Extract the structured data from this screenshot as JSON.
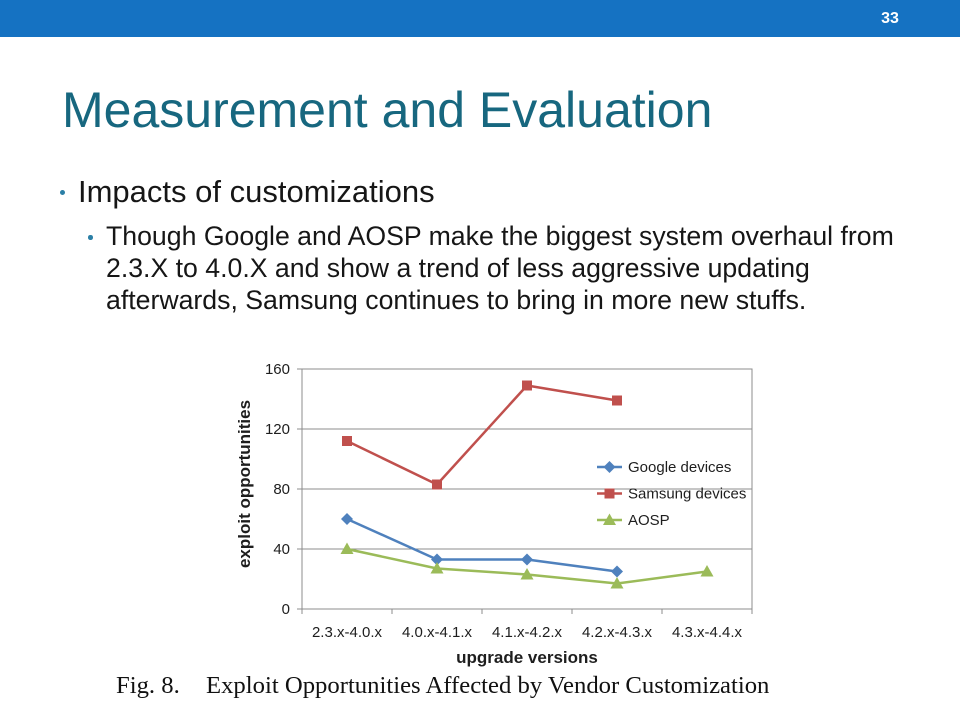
{
  "theme": {
    "header_bar": "#1572c2",
    "title": "#17677f",
    "bullet": "#2b7fa6",
    "text": "#161616"
  },
  "slide": {
    "page_number": "33",
    "title": "Measurement and Evaluation",
    "bullets": [
      {
        "text": "Impacts of customizations",
        "sub_bullets": [
          {
            "text": "Though Google and AOSP make the biggest system overhaul from 2.3.X to 4.0.X and show a trend of less aggressive updating afterwards, Samsung continues to bring in more new stuffs."
          }
        ]
      }
    ]
  },
  "figure": {
    "caption_label": "Fig. 8.",
    "caption_text": "Exploit Opportunities Affected by Vendor Customization"
  },
  "chart_data": {
    "type": "line",
    "xlabel": "upgrade versions",
    "ylabel": "exploit opportunities",
    "categories": [
      "2.3.x-4.0.x",
      "4.0.x-4.1.x",
      "4.1.x-4.2.x",
      "4.2.x-4.3.x",
      "4.3.x-4.4.x"
    ],
    "ylim": [
      0,
      160
    ],
    "y_ticks": [
      0,
      40,
      80,
      120,
      160
    ],
    "grid": true,
    "legend_position": "right",
    "series": [
      {
        "name": "Google devices",
        "color": "#4f81bd",
        "marker": "diamond",
        "values": [
          60,
          33,
          33,
          25,
          null
        ]
      },
      {
        "name": "Samsung devices",
        "color": "#c0504d",
        "marker": "square",
        "values": [
          112,
          83,
          149,
          139,
          null
        ]
      },
      {
        "name": "AOSP",
        "color": "#9bbb59",
        "marker": "triangle",
        "values": [
          40,
          27,
          23,
          17,
          25
        ]
      }
    ]
  }
}
